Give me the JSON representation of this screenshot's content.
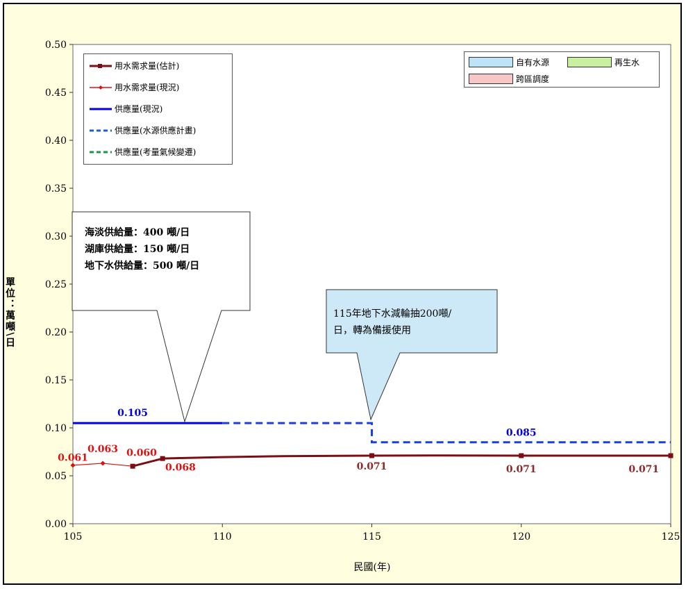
{
  "chart_data": {
    "type": "line",
    "xlabel": "民國(年)",
    "ylabel": "單位：萬噸\\日",
    "xlim": [
      105,
      125
    ],
    "ylim": [
      0.0,
      0.5
    ],
    "x_ticks": [
      "105",
      "110",
      "115",
      "120",
      "125"
    ],
    "y_ticks": [
      "0.00",
      "0.05",
      "0.10",
      "0.15",
      "0.20",
      "0.25",
      "0.30",
      "0.35",
      "0.40",
      "0.45",
      "0.50"
    ],
    "grid": false,
    "legend_left": [
      {
        "name": "用水需求量(估計)",
        "color": "#7a0e12",
        "style": "line-square"
      },
      {
        "name": "用水需求量(現況)",
        "color": "#e01010",
        "style": "line-diamond"
      },
      {
        "name": "供應量(現況)",
        "color": "#0000e0",
        "style": "solid"
      },
      {
        "name": "供應量(水源供應計畫)",
        "color": "#1a5fd6",
        "style": "dashed"
      },
      {
        "name": "供應量(考量氣候變遷)",
        "color": "#109a4a",
        "style": "dashed"
      }
    ],
    "legend_right": [
      {
        "name": "自有水源",
        "color": "#bfe3f6"
      },
      {
        "name": "再生水",
        "color": "#c8f0a0"
      },
      {
        "name": "跨區調度",
        "color": "#f7c6c6"
      }
    ],
    "series": [
      {
        "name": "用水需求量(估計)",
        "color": "#7a0e12",
        "x": [
          107,
          108,
          110,
          112,
          115,
          117,
          120,
          125
        ],
        "y": [
          0.06,
          0.068,
          0.0695,
          0.0705,
          0.071,
          0.0712,
          0.071,
          0.071
        ],
        "markers": [
          107,
          108,
          115,
          120,
          125
        ]
      },
      {
        "name": "用水需求量(現況)",
        "color": "#e01010",
        "x": [
          105,
          106,
          107
        ],
        "y": [
          0.061,
          0.063,
          0.06
        ]
      },
      {
        "name": "供應量(現況)",
        "color": "#0000e0",
        "x": [
          105,
          110
        ],
        "y": [
          0.105,
          0.105
        ]
      },
      {
        "name": "供應量(水源供應計畫)",
        "color": "#1a5fd6",
        "x": [
          110,
          115,
          115,
          125
        ],
        "y": [
          0.105,
          0.105,
          0.085,
          0.085
        ]
      }
    ],
    "data_labels": [
      {
        "text": "0.061",
        "x": 105.0,
        "y": 0.0655,
        "color": "#e01010"
      },
      {
        "text": "0.063",
        "x": 106.0,
        "y": 0.0745,
        "color": "#e01010"
      },
      {
        "text": "0.060",
        "x": 107.3,
        "y": 0.0705,
        "color": "#e01010"
      },
      {
        "text": "0.068",
        "x": 108.6,
        "y": 0.0555,
        "color": "#e01010"
      },
      {
        "text": "0.071",
        "x": 115.0,
        "y": 0.0565,
        "color": "#8b2a2a"
      },
      {
        "text": "0.071",
        "x": 120.0,
        "y": 0.0535,
        "color": "#8b2a2a"
      },
      {
        "text": "0.071",
        "x": 124.1,
        "y": 0.0535,
        "color": "#8b2a2a"
      },
      {
        "text": "0.105",
        "x": 107.0,
        "y": 0.1125,
        "color": "#0000e0"
      },
      {
        "text": "0.085",
        "x": 120.0,
        "y": 0.0915,
        "color": "#0000e0"
      }
    ],
    "annotations": [
      {
        "lines": [
          "海淡供給量：400 噸/日",
          "湖庫供給量：150 噸/日",
          "地下水供給量：500 噸/日"
        ],
        "pointer_x": 108.8,
        "pointer_y": 0.105
      },
      {
        "lines": [
          "115年地下水減輪抽200噸/",
          "日，轉為備援使用"
        ],
        "pointer_x": 115.0,
        "pointer_y": 0.105
      }
    ]
  }
}
